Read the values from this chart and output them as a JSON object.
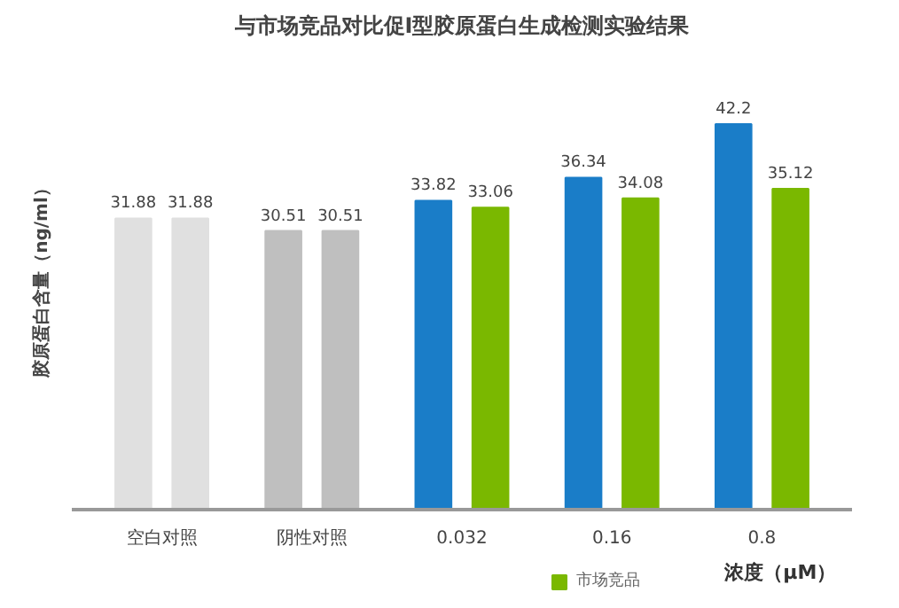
{
  "chart_data": {
    "type": "bar",
    "title": "与市场竞品对比促I型胶原蛋白生成检测实验结果",
    "ylabel": "胶原蛋白含量（ng/ml）",
    "xlabel": "浓度（μM）",
    "categories": [
      "空白对照",
      "阴性对照",
      "0.032",
      "0.16",
      "0.8"
    ],
    "series": [
      {
        "colors": [
          "#e0e0e0",
          "#bfbfbf",
          "#1a7dc8",
          "#1a7dc8",
          "#1a7dc8"
        ],
        "values": [
          31.88,
          30.51,
          33.82,
          36.34,
          42.2
        ]
      },
      {
        "name": "市场竞品",
        "colors": [
          "#e0e0e0",
          "#bfbfbf",
          "#7ab800",
          "#7ab800",
          "#7ab800"
        ],
        "values": [
          31.88,
          30.51,
          33.06,
          34.08,
          35.12
        ]
      }
    ],
    "data_labels": true,
    "grid": false,
    "legend": "bottom right"
  }
}
